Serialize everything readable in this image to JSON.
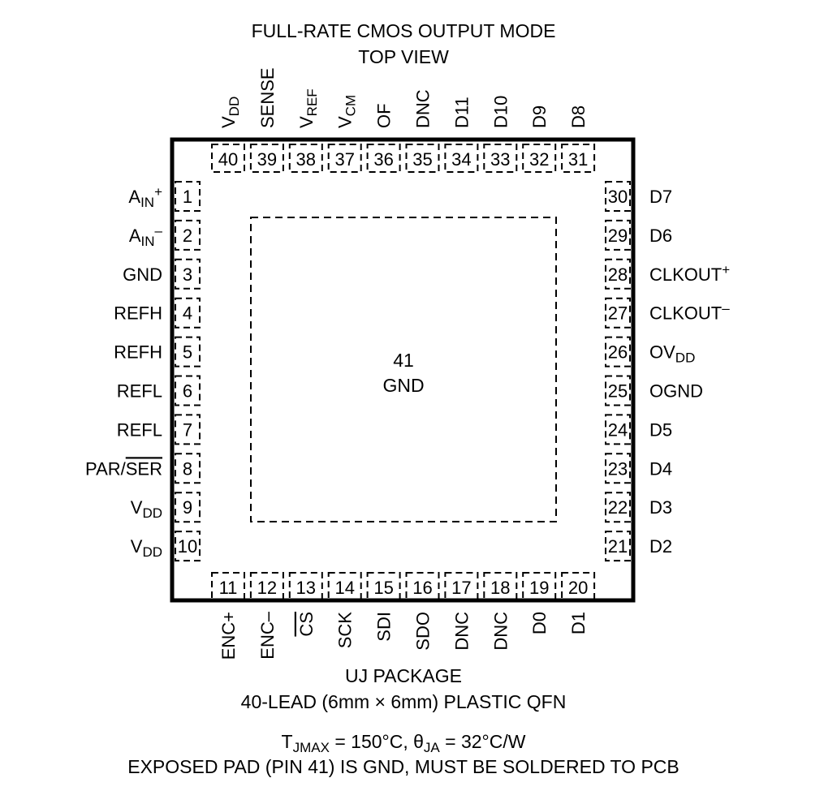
{
  "title": [
    "FULL-RATE CMOS OUTPUT MODE",
    "TOP VIEW"
  ],
  "exposed_pad": {
    "number": "41",
    "label": "GND"
  },
  "footer": {
    "package": "UJ PACKAGE",
    "lead": "40-LEAD (6mm × 6mm) PLASTIC QFN",
    "thermal": [
      {
        "t": "T"
      },
      {
        "t": "JMAX",
        "s": "sub"
      },
      {
        "t": " = 150°C, "
      },
      {
        "t": "θ"
      },
      {
        "t": "JA",
        "s": "sub"
      },
      {
        "t": " = 32°C/W"
      }
    ],
    "note": "EXPOSED PAD (PIN 41) IS GND, MUST BE SOLDERED TO PCB"
  },
  "pins": {
    "left": [
      {
        "num": "1",
        "label": [
          {
            "t": "A"
          },
          {
            "t": "IN",
            "s": "sub"
          },
          {
            "t": "+",
            "s": "sup"
          }
        ]
      },
      {
        "num": "2",
        "label": [
          {
            "t": "A"
          },
          {
            "t": "IN",
            "s": "sub"
          },
          {
            "t": "–",
            "s": "sup"
          }
        ]
      },
      {
        "num": "3",
        "label": [
          {
            "t": "GND"
          }
        ]
      },
      {
        "num": "4",
        "label": [
          {
            "t": "REFH"
          }
        ]
      },
      {
        "num": "5",
        "label": [
          {
            "t": "REFH"
          }
        ]
      },
      {
        "num": "6",
        "label": [
          {
            "t": "REFL"
          }
        ]
      },
      {
        "num": "7",
        "label": [
          {
            "t": "REFL"
          }
        ]
      },
      {
        "num": "8",
        "label": [
          {
            "t": "PAR/"
          },
          {
            "t": "SER",
            "s": "over"
          }
        ]
      },
      {
        "num": "9",
        "label": [
          {
            "t": "V"
          },
          {
            "t": "DD",
            "s": "sub"
          }
        ]
      },
      {
        "num": "10",
        "label": [
          {
            "t": "V"
          },
          {
            "t": "DD",
            "s": "sub"
          }
        ]
      }
    ],
    "bottom": [
      {
        "num": "11",
        "label": [
          {
            "t": "ENC+"
          }
        ]
      },
      {
        "num": "12",
        "label": [
          {
            "t": "ENC–"
          }
        ]
      },
      {
        "num": "13",
        "label": [
          {
            "t": "CS",
            "s": "over"
          }
        ]
      },
      {
        "num": "14",
        "label": [
          {
            "t": "SCK"
          }
        ]
      },
      {
        "num": "15",
        "label": [
          {
            "t": "SDI"
          }
        ]
      },
      {
        "num": "16",
        "label": [
          {
            "t": "SDO"
          }
        ]
      },
      {
        "num": "17",
        "label": [
          {
            "t": "DNC"
          }
        ]
      },
      {
        "num": "18",
        "label": [
          {
            "t": "DNC"
          }
        ]
      },
      {
        "num": "19",
        "label": [
          {
            "t": "D0"
          }
        ]
      },
      {
        "num": "20",
        "label": [
          {
            "t": "D1"
          }
        ]
      }
    ],
    "right": [
      {
        "num": "30",
        "label": [
          {
            "t": "D7"
          }
        ]
      },
      {
        "num": "29",
        "label": [
          {
            "t": "D6"
          }
        ]
      },
      {
        "num": "28",
        "label": [
          {
            "t": "CLKOUT"
          },
          {
            "t": "+",
            "s": "sup"
          }
        ]
      },
      {
        "num": "27",
        "label": [
          {
            "t": "CLKOUT"
          },
          {
            "t": "–",
            "s": "sup"
          }
        ]
      },
      {
        "num": "26",
        "label": [
          {
            "t": "OV"
          },
          {
            "t": "DD",
            "s": "sub"
          }
        ]
      },
      {
        "num": "25",
        "label": [
          {
            "t": "OGND"
          }
        ]
      },
      {
        "num": "24",
        "label": [
          {
            "t": "D5"
          }
        ]
      },
      {
        "num": "23",
        "label": [
          {
            "t": "D4"
          }
        ]
      },
      {
        "num": "22",
        "label": [
          {
            "t": "D3"
          }
        ]
      },
      {
        "num": "21",
        "label": [
          {
            "t": "D2"
          }
        ]
      }
    ],
    "top": [
      {
        "num": "40",
        "label": [
          {
            "t": "V"
          },
          {
            "t": "DD",
            "s": "sub"
          }
        ]
      },
      {
        "num": "39",
        "label": [
          {
            "t": "SENSE"
          }
        ]
      },
      {
        "num": "38",
        "label": [
          {
            "t": "V"
          },
          {
            "t": "REF",
            "s": "sub"
          }
        ]
      },
      {
        "num": "37",
        "label": [
          {
            "t": "V"
          },
          {
            "t": "CM",
            "s": "sub"
          }
        ]
      },
      {
        "num": "36",
        "label": [
          {
            "t": "OF"
          }
        ]
      },
      {
        "num": "35",
        "label": [
          {
            "t": "DNC"
          }
        ]
      },
      {
        "num": "34",
        "label": [
          {
            "t": "D11"
          }
        ]
      },
      {
        "num": "33",
        "label": [
          {
            "t": "D10"
          }
        ]
      },
      {
        "num": "32",
        "label": [
          {
            "t": "D9"
          }
        ]
      },
      {
        "num": "31",
        "label": [
          {
            "t": "D8"
          }
        ]
      }
    ]
  }
}
